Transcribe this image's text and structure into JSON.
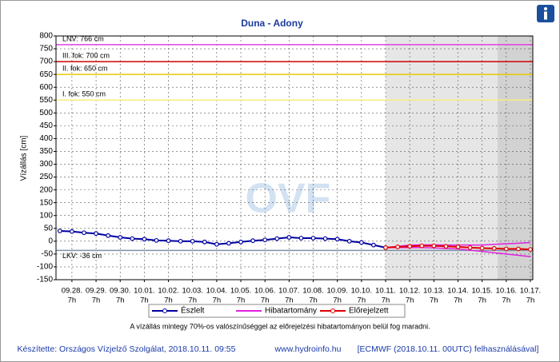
{
  "chart_data": {
    "type": "line",
    "title": "Duna - Adony",
    "ylabel": "Vízállás [cm]",
    "watermark": "OVF",
    "xlim": [
      -0.66,
      19.1
    ],
    "ylim": [
      -150,
      800
    ],
    "yticks": [
      -150,
      -100,
      -50,
      0,
      50,
      100,
      150,
      200,
      250,
      300,
      350,
      400,
      450,
      500,
      550,
      600,
      650,
      700,
      750,
      800
    ],
    "xticks": [
      {
        "value": 0,
        "label": "09.28.",
        "sub": "7h"
      },
      {
        "value": 1,
        "label": "09.29.",
        "sub": "7h"
      },
      {
        "value": 2,
        "label": "09.30.",
        "sub": "7h"
      },
      {
        "value": 3,
        "label": "10.01.",
        "sub": "7h"
      },
      {
        "value": 4,
        "label": "10.02.",
        "sub": "7h"
      },
      {
        "value": 5,
        "label": "10.03.",
        "sub": "7h"
      },
      {
        "value": 6,
        "label": "10.04.",
        "sub": "7h"
      },
      {
        "value": 7,
        "label": "10.05.",
        "sub": "7h"
      },
      {
        "value": 8,
        "label": "10.06.",
        "sub": "7h"
      },
      {
        "value": 9,
        "label": "10.07.",
        "sub": "7h"
      },
      {
        "value": 10,
        "label": "10.08.",
        "sub": "7h"
      },
      {
        "value": 11,
        "label": "10.09.",
        "sub": "7h"
      },
      {
        "value": 12,
        "label": "10.10.",
        "sub": "7h"
      },
      {
        "value": 13,
        "label": "10.11.",
        "sub": "7h"
      },
      {
        "value": 14,
        "label": "10.12.",
        "sub": "7h"
      },
      {
        "value": 15,
        "label": "10.13.",
        "sub": "7h"
      },
      {
        "value": 16,
        "label": "10.14.",
        "sub": "7h"
      },
      {
        "value": 17,
        "label": "10.15.",
        "sub": "7h"
      },
      {
        "value": 18,
        "label": "10.16.",
        "sub": "7h"
      },
      {
        "value": 19,
        "label": "10.17.",
        "sub": "7h"
      }
    ],
    "grid": true,
    "thresholds": [
      {
        "label": "LNV: 766 cm",
        "value": 766,
        "color": "#e040e0"
      },
      {
        "label": "III. fok: 700 cm",
        "value": 700,
        "color": "#d00000"
      },
      {
        "label": "II. fok: 650 cm",
        "value": 650,
        "color": "#e8c800"
      },
      {
        "label": "I. fok: 550 cm",
        "value": 550,
        "color": "#f4f080"
      },
      {
        "label": "LKV: -36 cm",
        "value": -36,
        "color": "#8090a8"
      }
    ],
    "series": [
      {
        "name": "Észlelt",
        "color": "#0000a0",
        "x": [
          -0.5,
          0,
          0.5,
          1,
          1.5,
          2,
          2.5,
          3,
          3.5,
          4,
          4.5,
          5,
          5.5,
          6,
          6.5,
          7,
          7.5,
          8,
          8.5,
          9,
          9.5,
          10,
          10.5,
          11,
          11.5,
          12,
          12.5,
          13
        ],
        "values": [
          40,
          38,
          33,
          30,
          22,
          15,
          10,
          8,
          3,
          2,
          0,
          0,
          -3,
          -12,
          -8,
          -3,
          2,
          5,
          10,
          15,
          12,
          12,
          10,
          8,
          0,
          -5,
          -15,
          -25
        ]
      },
      {
        "name": "Előrejelzett",
        "color": "#e00000",
        "x": [
          13,
          13.5,
          14,
          14.5,
          15,
          15.5,
          16,
          16.5,
          17,
          17.5,
          18,
          18.5,
          19
        ],
        "values": [
          -25,
          -22,
          -20,
          -18,
          -18,
          -20,
          -22,
          -25,
          -27,
          -28,
          -30,
          -30,
          -32
        ]
      }
    ],
    "band": {
      "name": "Hibatartomány",
      "color": "#e020e0",
      "x": [
        13,
        13.5,
        14,
        14.5,
        15,
        15.5,
        16,
        16.5,
        17,
        17.5,
        18,
        18.5,
        19
      ],
      "upper": [
        -25,
        -20,
        -15,
        -14,
        -14,
        -15,
        -15,
        -15,
        -15,
        -12,
        -10,
        -8,
        -5
      ],
      "lower": [
        -25,
        -25,
        -25,
        -25,
        -26,
        -28,
        -30,
        -35,
        -40,
        -45,
        -50,
        -55,
        -60
      ]
    },
    "note": "A vízállás mintegy 70%-os valószínűséggel az előrejelzési hibatartományon belül fog maradni.",
    "footer": {
      "author": "Készítette: Országos Vízjelző Szolgálat, 2018.10.11. 09:55",
      "site": "www.hydroinfo.hu",
      "source": "[ECMWF (2018.10.11. 00UTC) felhasználásával]"
    }
  }
}
